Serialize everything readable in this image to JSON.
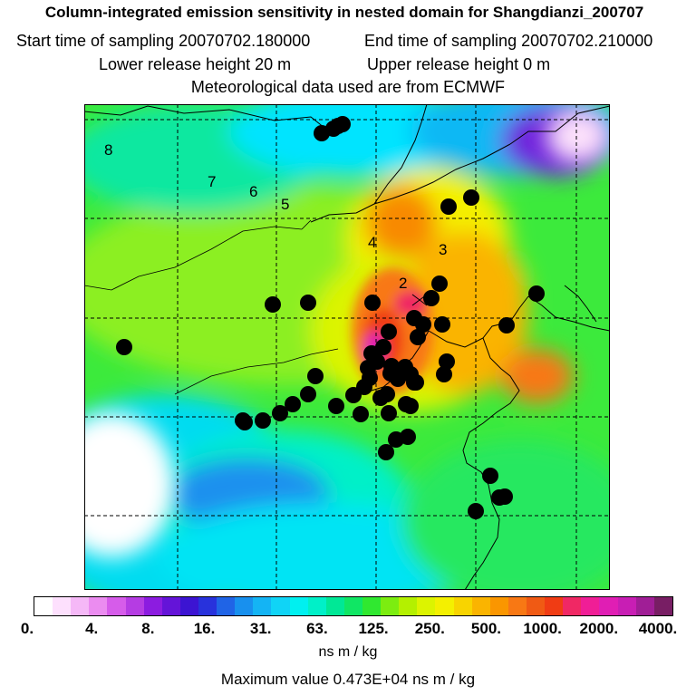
{
  "title": "Column-integrated emission sensitivity in nested domain for Shangdianzi_200707",
  "sampling": {
    "start": "Start time of sampling 20070702.180000",
    "end": "End time of sampling 20070702.210000"
  },
  "release": {
    "lower": "Lower release height   20 m",
    "upper": "Upper release height    0 m"
  },
  "meteo": "Meteorological data used are from ECMWF",
  "map": {
    "trajectory_labels": [
      "8",
      "7",
      "6",
      "5",
      "4",
      "3",
      "2"
    ]
  },
  "colorbar": {
    "labels": [
      "0.",
      "4.",
      "8.",
      "16.",
      "31.",
      "63.",
      "125.",
      "250.",
      "500.",
      "1000.",
      "2000.",
      "4000."
    ],
    "colors": [
      "#ffffff",
      "#fde0fd",
      "#f5b8f7",
      "#eb8cf0",
      "#d65cea",
      "#b53ce3",
      "#8c1ce0",
      "#6414d8",
      "#3c14d2",
      "#2832dc",
      "#2064e6",
      "#1890ee",
      "#14b4f4",
      "#10d4f6",
      "#00f0f0",
      "#00f0c8",
      "#00e896",
      "#10e664",
      "#30e830",
      "#7ced10",
      "#b4f000",
      "#dcf400",
      "#f4f000",
      "#f8d400",
      "#fab400",
      "#fa9600",
      "#f87814",
      "#f05a14",
      "#f03c14",
      "#f02864",
      "#f01e96",
      "#e01eb4",
      "#c81eb4",
      "#a01e96",
      "#781e64"
    ],
    "units": "ns m / kg"
  },
  "max_value": "Maximum value  0.473E+04 ns m / kg"
}
